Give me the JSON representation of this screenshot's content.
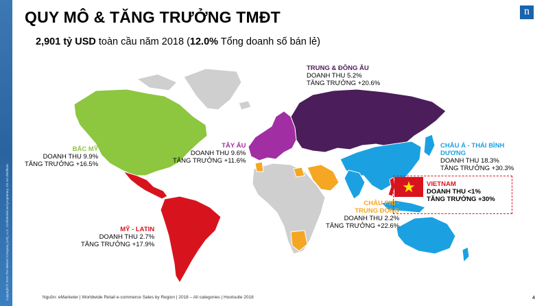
{
  "side_note": "Copyright © 2018 The Nielsen Company (US), LLC. Confidential and proprietary. Do not distribute.",
  "logo_letter": "n",
  "title": "QUY MÔ & TĂNG TRƯỞNG TMĐT",
  "subtitle": {
    "amount": "2,901 tỷ USD",
    "text1": " toàn cầu năm 2018 (",
    "share": "12.0%",
    "text2": " Tổng doanh số bán lẻ)"
  },
  "colors": {
    "north_america": "#8dc63f",
    "latin_america": "#d7141e",
    "western_europe": "#a22ea3",
    "central_eastern_europe": "#4b1d5a",
    "asia_pacific": "#1ba1e2",
    "africa_middle_east": "#f5a623",
    "other": "#cfcfcf"
  },
  "regions": {
    "north_america": {
      "name": "BẮC MỸ",
      "revenue": "DOANH THU 9.9%",
      "growth": "TĂNG TRƯỞNG +16.5%"
    },
    "central_eastern_europe": {
      "name": "TRUNG & ĐÔNG ÂU",
      "revenue": "DOANH THU 5.2%",
      "growth": "TĂNG TRƯỞNG +20.6%"
    },
    "western_europe": {
      "name": "TÂY ÂU",
      "revenue": "DOANH THU 9.6%",
      "growth": "TĂNG TRƯỞNG +11.6%"
    },
    "asia_pacific": {
      "name1": "CHÂU Á - THÁI BÌNH",
      "name2": "DƯƠNG",
      "revenue": "DOANH THU 18.3%",
      "growth": "TĂNG TRƯỞNG +30.3%"
    },
    "africa_middle_east": {
      "name1": "CHÂU PHI -",
      "name2": "TRUNG ĐÔNG",
      "revenue": "DOANH THU 2.2%",
      "growth": "TĂNG TRƯỞNG +22.6%"
    },
    "latin_america": {
      "name": "MỸ - LATIN",
      "revenue": "DOANH THU 2.7%",
      "growth": "TĂNG TRƯỞNG +17.9%"
    },
    "vietnam": {
      "name": "VIETNAM",
      "revenue": "DOANH THU <1%",
      "growth": "TĂNG TRƯỞNG +30%"
    }
  },
  "source": "Nguồn: eMarketer | Worldwide Retail e-commerce Sales by Region | 2018 – All categories | Hootsuite 2018",
  "page_number": "4"
}
